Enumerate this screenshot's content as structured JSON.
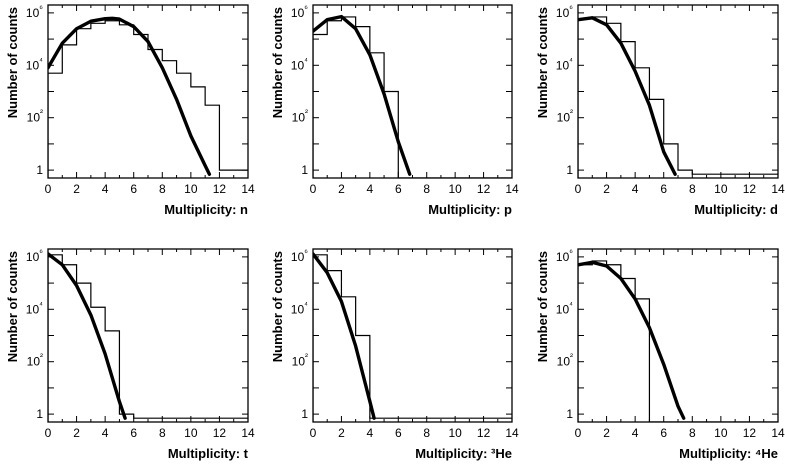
{
  "figure": {
    "panels": [
      {
        "xlabel": "Multiplicity: n"
      },
      {
        "xlabel": "Multiplicity: p"
      },
      {
        "xlabel": "Multiplicity: d"
      },
      {
        "xlabel": "Multiplicity: t"
      },
      {
        "xlabel": "Multiplicity: ³He"
      },
      {
        "xlabel": "Multiplicity: ⁴He"
      }
    ]
  },
  "chart_data": [
    {
      "type": "histogram+line",
      "xlabel": "Multiplicity: n",
      "ylabel": "Number of counts",
      "xlim": [
        0,
        14
      ],
      "ylim": [
        0.5,
        2000000
      ],
      "yscale": "log",
      "x_ticks": [
        "0",
        "2",
        "4",
        "6",
        "8",
        "10",
        "12",
        "14"
      ],
      "y_ticks": [
        {
          "value": 1,
          "label": "1"
        },
        {
          "value": 100,
          "label": "10²"
        },
        {
          "value": 10000,
          "label": "10⁴"
        },
        {
          "value": 1000000,
          "label": "10⁶"
        }
      ],
      "histogram": {
        "bin_edges": [
          0,
          1,
          2,
          3,
          4,
          5,
          6,
          7,
          8,
          9,
          10,
          11,
          12,
          13,
          14
        ],
        "counts": [
          5000,
          60000,
          250000,
          400000,
          500000,
          350000,
          150000,
          40000,
          15000,
          5000,
          1500,
          300,
          1,
          1
        ]
      },
      "fit": {
        "x": [
          0,
          1,
          2,
          3,
          4,
          4.5,
          5,
          6,
          7,
          8,
          9,
          10,
          11,
          11.3
        ],
        "y": [
          8000,
          70000,
          250000,
          480000,
          600000,
          620000,
          580000,
          300000,
          80000,
          8000,
          500,
          20,
          1.5,
          0.7
        ]
      }
    },
    {
      "type": "histogram+line",
      "xlabel": "Multiplicity: p",
      "ylabel": "Number of counts",
      "xlim": [
        0,
        14
      ],
      "ylim": [
        0.5,
        2000000
      ],
      "yscale": "log",
      "x_ticks": [
        "0",
        "2",
        "4",
        "6",
        "8",
        "10",
        "12",
        "14"
      ],
      "y_ticks": [
        {
          "value": 1,
          "label": "1"
        },
        {
          "value": 100,
          "label": "10²"
        },
        {
          "value": 10000,
          "label": "10⁴"
        },
        {
          "value": 1000000,
          "label": "10⁶"
        }
      ],
      "histogram": {
        "bin_edges": [
          0,
          1,
          2,
          3,
          4,
          5,
          6,
          7,
          8,
          9,
          10,
          11,
          12,
          13,
          14
        ],
        "counts": [
          150000,
          500000,
          700000,
          300000,
          30000,
          1000,
          0.5,
          0.5,
          0.5,
          0.5,
          0.5,
          0.5,
          0.5,
          0.5
        ]
      },
      "fit": {
        "x": [
          0,
          1,
          2,
          3,
          4,
          5,
          6,
          6.8
        ],
        "y": [
          200000,
          550000,
          720000,
          250000,
          25000,
          800,
          12,
          0.7
        ]
      }
    },
    {
      "type": "histogram+line",
      "xlabel": "Multiplicity: d",
      "ylabel": "Number of counts",
      "xlim": [
        0,
        14
      ],
      "ylim": [
        0.5,
        2000000
      ],
      "yscale": "log",
      "x_ticks": [
        "0",
        "2",
        "4",
        "6",
        "8",
        "10",
        "12",
        "14"
      ],
      "y_ticks": [
        {
          "value": 1,
          "label": "1"
        },
        {
          "value": 100,
          "label": "10²"
        },
        {
          "value": 10000,
          "label": "10⁴"
        },
        {
          "value": 1000000,
          "label": "10⁶"
        }
      ],
      "histogram": {
        "bin_edges": [
          0,
          1,
          2,
          3,
          4,
          5,
          6,
          7,
          8,
          9,
          10,
          11,
          12,
          13,
          14
        ],
        "counts": [
          600000,
          700000,
          400000,
          80000,
          8000,
          500,
          10,
          1,
          0.7,
          0.7,
          0.7,
          0.7,
          0.7,
          0.7
        ]
      },
      "fit": {
        "x": [
          0,
          1,
          2,
          3,
          4,
          5,
          6,
          6.8
        ],
        "y": [
          550000,
          650000,
          350000,
          70000,
          6000,
          300,
          5,
          0.7
        ]
      }
    },
    {
      "type": "histogram+line",
      "xlabel": "Multiplicity: t",
      "ylabel": "Number of counts",
      "xlim": [
        0,
        14
      ],
      "ylim": [
        0.5,
        2000000
      ],
      "yscale": "log",
      "x_ticks": [
        "0",
        "2",
        "4",
        "6",
        "8",
        "10",
        "12",
        "14"
      ],
      "y_ticks": [
        {
          "value": 1,
          "label": "1"
        },
        {
          "value": 100,
          "label": "10²"
        },
        {
          "value": 10000,
          "label": "10⁴"
        },
        {
          "value": 1000000,
          "label": "10⁶"
        }
      ],
      "histogram": {
        "bin_edges": [
          0,
          1,
          2,
          3,
          4,
          5,
          6,
          7,
          8,
          9,
          10,
          11,
          12,
          13,
          14
        ],
        "counts": [
          1200000,
          500000,
          100000,
          12000,
          1500,
          1,
          0.7,
          0.7,
          0.7,
          0.7,
          0.7,
          0.7,
          0.7,
          0.7
        ]
      },
      "fit": {
        "x": [
          0,
          1,
          2,
          3,
          4,
          5,
          5.4
        ],
        "y": [
          1300000,
          500000,
          80000,
          6000,
          200,
          3,
          0.7
        ]
      }
    },
    {
      "type": "histogram+line",
      "xlabel": "Multiplicity: ³He",
      "ylabel": "Number of counts",
      "xlim": [
        0,
        14
      ],
      "ylim": [
        0.5,
        2000000
      ],
      "yscale": "log",
      "x_ticks": [
        "0",
        "2",
        "4",
        "6",
        "8",
        "10",
        "12",
        "14"
      ],
      "y_ticks": [
        {
          "value": 1,
          "label": "1"
        },
        {
          "value": 100,
          "label": "10²"
        },
        {
          "value": 10000,
          "label": "10⁴"
        },
        {
          "value": 1000000,
          "label": "10⁶"
        }
      ],
      "histogram": {
        "bin_edges": [
          0,
          1,
          2,
          3,
          4,
          5,
          6,
          7,
          8,
          9,
          10,
          11,
          12,
          13,
          14
        ],
        "counts": [
          1200000,
          300000,
          30000,
          1000,
          0.7,
          0.7,
          0.7,
          0.7,
          0.7,
          0.7,
          0.7,
          0.7,
          0.7,
          0.7
        ]
      },
      "fit": {
        "x": [
          0,
          1,
          2,
          3,
          4,
          4.3
        ],
        "y": [
          1300000,
          250000,
          20000,
          400,
          3,
          0.7
        ]
      }
    },
    {
      "type": "histogram+line",
      "xlabel": "Multiplicity: ⁴He",
      "ylabel": "Number of counts",
      "xlim": [
        0,
        14
      ],
      "ylim": [
        0.5,
        2000000
      ],
      "yscale": "log",
      "x_ticks": [
        "0",
        "2",
        "4",
        "6",
        "8",
        "10",
        "12",
        "14"
      ],
      "y_ticks": [
        {
          "value": 1,
          "label": "1"
        },
        {
          "value": 100,
          "label": "10²"
        },
        {
          "value": 10000,
          "label": "10⁴"
        },
        {
          "value": 1000000,
          "label": "10⁶"
        }
      ],
      "histogram": {
        "bin_edges": [
          0,
          1,
          2,
          3,
          4,
          5,
          6,
          7,
          8,
          9,
          10,
          11,
          12,
          13,
          14
        ],
        "counts": [
          500000,
          700000,
          500000,
          150000,
          25000,
          0.5,
          0.5,
          0.5,
          0.5,
          0.5,
          0.5,
          0.5,
          0.5,
          0.5
        ]
      },
      "fit": {
        "x": [
          0,
          1,
          2,
          3,
          4,
          5,
          6,
          7,
          7.4
        ],
        "y": [
          500000,
          620000,
          450000,
          150000,
          25000,
          2000,
          80,
          2,
          0.7
        ]
      }
    }
  ]
}
